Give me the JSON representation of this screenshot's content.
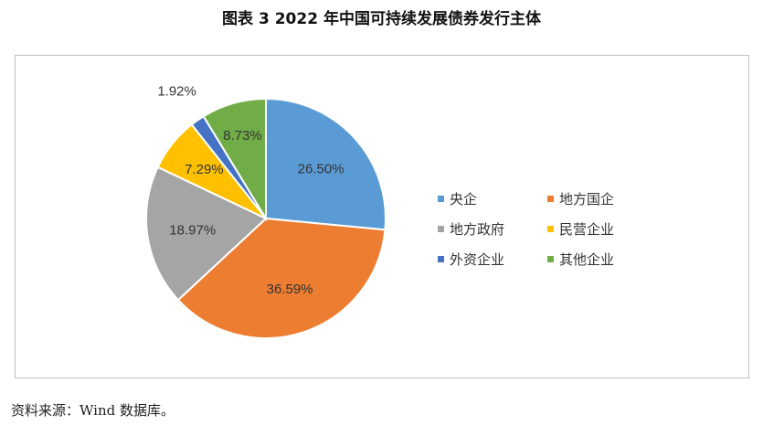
{
  "title": "图表 3 2022 年中国可持续发展债券发行主体",
  "source": "资料来源：Wind 数据库。",
  "chart_data": {
    "type": "pie",
    "start_angle_deg": 0,
    "direction": "clockwise",
    "legend_position": "right",
    "slices": [
      {
        "name": "央企",
        "value": 26.5,
        "label": "26.50%",
        "color": "#5B9BD5"
      },
      {
        "name": "地方国企",
        "value": 36.59,
        "label": "36.59%",
        "color": "#ED7D31"
      },
      {
        "name": "地方政府",
        "value": 18.97,
        "label": "18.97%",
        "color": "#A5A5A5"
      },
      {
        "name": "民营企业",
        "value": 7.29,
        "label": "7.29%",
        "color": "#FFC000"
      },
      {
        "name": "外资企业",
        "value": 1.92,
        "label": "1.92%",
        "color": "#4472C4"
      },
      {
        "name": "其他企业",
        "value": 8.73,
        "label": "8.73%",
        "color": "#70AD47"
      }
    ]
  }
}
